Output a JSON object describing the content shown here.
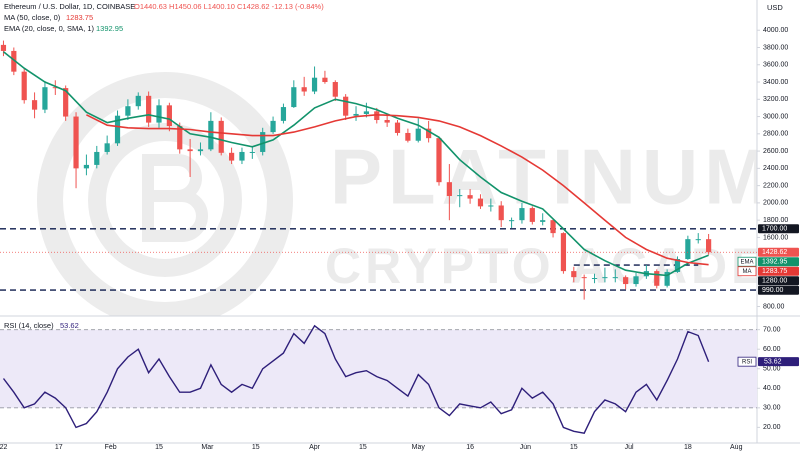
{
  "chart_data": {
    "type": "candlestick",
    "header": {
      "title": "Ethereum / U.S. Dollar, 1D, COINBASE",
      "ohlc": "O1440.63 H1450.06 L1400.10 C1428.62 -12.13 (-0.84%)",
      "ma_label": "MA (50, close, 0)",
      "ma_value": 1283.75,
      "ema_label": "EMA (20, close, 0, SMA, 1)",
      "ema_value": 1392.95
    },
    "axis_unit": "USD",
    "watermark": [
      "PLATINUM",
      "CRYPTO ACADEMY"
    ],
    "xlim": [
      -1,
      218
    ],
    "xticks": [
      {
        "value": 0,
        "label": "22"
      },
      {
        "value": 16,
        "label": "17"
      },
      {
        "value": 31,
        "label": "Feb"
      },
      {
        "value": 45,
        "label": "15"
      },
      {
        "value": 59,
        "label": "Mar"
      },
      {
        "value": 73,
        "label": "15"
      },
      {
        "value": 90,
        "label": "Apr"
      },
      {
        "value": 104,
        "label": "15"
      },
      {
        "value": 120,
        "label": "May"
      },
      {
        "value": 135,
        "label": "16"
      },
      {
        "value": 151,
        "label": "Jun"
      },
      {
        "value": 165,
        "label": "15"
      },
      {
        "value": 181,
        "label": "Jul"
      },
      {
        "value": 198,
        "label": "18"
      },
      {
        "value": 212,
        "label": "Aug"
      }
    ],
    "ylim": [
      690,
      4350
    ],
    "yticks": [
      {
        "value": 800,
        "label": "800.00"
      },
      {
        "value": 1600,
        "label": "1600.00"
      },
      {
        "value": 1800,
        "label": "1800.00"
      },
      {
        "value": 2000,
        "label": "2000.00"
      },
      {
        "value": 2200,
        "label": "2200.00"
      },
      {
        "value": 2400,
        "label": "2400.00"
      },
      {
        "value": 2600,
        "label": "2600.00"
      },
      {
        "value": 2800,
        "label": "2800.00"
      },
      {
        "value": 3000,
        "label": "3000.00"
      },
      {
        "value": 3200,
        "label": "3200.00"
      },
      {
        "value": 3400,
        "label": "3400.00"
      },
      {
        "value": 3600,
        "label": "3600.00"
      },
      {
        "value": 3800,
        "label": "3800.00"
      },
      {
        "value": 4000,
        "label": "4000.00"
      }
    ],
    "grid": false,
    "candles": {
      "up_color": "#26a69a",
      "down_color": "#ef5350",
      "x": [
        0,
        3,
        6,
        9,
        12,
        15,
        18,
        21,
        24,
        27,
        30,
        33,
        36,
        39,
        42,
        45,
        48,
        51,
        54,
        57,
        60,
        63,
        66,
        69,
        72,
        75,
        78,
        81,
        84,
        87,
        90,
        93,
        96,
        99,
        102,
        105,
        108,
        111,
        114,
        117,
        120,
        123,
        126,
        129,
        132,
        135,
        138,
        141,
        144,
        147,
        150,
        153,
        156,
        159,
        162,
        165,
        168,
        171,
        174,
        177,
        180,
        183,
        186,
        189,
        192,
        195,
        198,
        201,
        204
      ],
      "open": [
        3830,
        3760,
        3520,
        3190,
        3080,
        3340,
        3330,
        3000,
        2400,
        2440,
        2590,
        2690,
        3010,
        3120,
        3240,
        2930,
        3130,
        2890,
        2620,
        2600,
        2620,
        2950,
        2580,
        2490,
        2590,
        2590,
        2820,
        2950,
        3110,
        3340,
        3290,
        3450,
        3400,
        3230,
        3010,
        3030,
        3060,
        2960,
        2930,
        2810,
        2720,
        2860,
        2750,
        2240,
        2080,
        2090,
        2050,
        1960,
        1970,
        1800,
        1800,
        1940,
        1780,
        1800,
        1650,
        1210,
        1140,
        1130,
        1130,
        1140,
        1140,
        1060,
        1150,
        1210,
        1040,
        1200,
        1350,
        1580,
        1580
      ],
      "high": [
        3880,
        3800,
        3560,
        3280,
        3410,
        3420,
        3360,
        3050,
        2560,
        2660,
        2780,
        3070,
        3200,
        3280,
        3290,
        3200,
        3160,
        2930,
        2740,
        2700,
        3050,
        2990,
        2640,
        2640,
        2650,
        2870,
        3000,
        3150,
        3420,
        3460,
        3580,
        3530,
        3420,
        3260,
        3120,
        3160,
        3100,
        3020,
        2960,
        2860,
        2980,
        2950,
        2770,
        2450,
        2160,
        2160,
        2100,
        2050,
        2020,
        1830,
        2000,
        1960,
        1880,
        1820,
        1660,
        1260,
        1170,
        1180,
        1250,
        1230,
        1160,
        1190,
        1280,
        1230,
        1230,
        1380,
        1620,
        1650,
        1640
      ],
      "low": [
        3700,
        3480,
        3150,
        2980,
        3040,
        3250,
        2950,
        2170,
        2320,
        2400,
        2560,
        2660,
        2960,
        3080,
        2880,
        2870,
        2830,
        2570,
        2300,
        2550,
        2600,
        2550,
        2450,
        2450,
        2510,
        2550,
        2800,
        2920,
        3100,
        3240,
        3260,
        3380,
        3180,
        2960,
        2950,
        2990,
        2920,
        2880,
        2780,
        2700,
        2700,
        2700,
        2200,
        1800,
        1950,
        1990,
        1930,
        1900,
        1720,
        1710,
        1760,
        1750,
        1740,
        1600,
        1180,
        1080,
        880,
        1070,
        1080,
        1080,
        1000,
        1030,
        1120,
        1010,
        1020,
        1190,
        1340,
        1530,
        1400
      ],
      "close": [
        3760,
        3520,
        3190,
        3080,
        3340,
        3330,
        3000,
        2400,
        2440,
        2590,
        2690,
        3010,
        3120,
        3240,
        2930,
        3130,
        2890,
        2620,
        2600,
        2620,
        2950,
        2580,
        2490,
        2590,
        2590,
        2820,
        2950,
        3110,
        3340,
        3290,
        3450,
        3400,
        3230,
        3010,
        3030,
        3060,
        2960,
        2930,
        2810,
        2720,
        2860,
        2750,
        2240,
        2080,
        2090,
        2050,
        1960,
        1970,
        1800,
        1800,
        1940,
        1780,
        1800,
        1650,
        1210,
        1140,
        1130,
        1130,
        1140,
        1140,
        1060,
        1150,
        1210,
        1040,
        1200,
        1350,
        1580,
        1580,
        1429
      ]
    },
    "line_x": [
      0,
      6,
      12,
      18,
      24,
      30,
      36,
      42,
      48,
      54,
      60,
      66,
      72,
      78,
      84,
      90,
      96,
      102,
      108,
      114,
      120,
      126,
      132,
      138,
      144,
      150,
      156,
      162,
      168,
      174,
      180,
      186,
      192,
      198,
      204
    ],
    "series": [
      {
        "name": "EMA",
        "color": "#12936b",
        "values": [
          3750,
          3560,
          3400,
          3300,
          3050,
          2930,
          2980,
          3020,
          2970,
          2800,
          2760,
          2700,
          2650,
          2730,
          2900,
          3100,
          3200,
          3150,
          3080,
          2980,
          2900,
          2760,
          2500,
          2300,
          2120,
          2020,
          1930,
          1700,
          1460,
          1330,
          1220,
          1180,
          1160,
          1300,
          1392.95
        ]
      },
      {
        "name": "MA",
        "color": "#e53935",
        "values": [
          null,
          null,
          null,
          null,
          3020,
          2900,
          2870,
          2860,
          2860,
          2850,
          2820,
          2800,
          2780,
          2780,
          2820,
          2880,
          2950,
          3000,
          3020,
          3010,
          2990,
          2950,
          2880,
          2780,
          2660,
          2530,
          2380,
          2200,
          2000,
          1800,
          1600,
          1460,
          1360,
          1310,
          1283.75
        ]
      }
    ],
    "levels": [
      1700,
      990
    ],
    "range_level": {
      "value": 1280,
      "x": [
        165,
        201
      ]
    },
    "price_tags": [
      {
        "value": 1700,
        "label": "1700.00",
        "color": "#131722"
      },
      {
        "value": 1428.62,
        "label": "1428.62",
        "color": "#ef5350",
        "price_line": true
      },
      {
        "name": "EMA",
        "value": 1392.95,
        "label": "1392.95",
        "color": "#12936b"
      },
      {
        "name": "MA",
        "value": 1283.75,
        "label": "1283.75",
        "color": "#e53935"
      },
      {
        "value": 1280,
        "label": "1280.00",
        "color": "#131722"
      },
      {
        "value": 990,
        "label": "990.00",
        "color": "#131722"
      }
    ],
    "rsi": {
      "label": "RSI (14, close)",
      "last": 53.62,
      "color": "#2e1f7a",
      "ylim": [
        12,
        77
      ],
      "yticks": [
        {
          "value": 20,
          "label": "20.00"
        },
        {
          "value": 30,
          "label": "30.00"
        },
        {
          "value": 40,
          "label": "40.00"
        },
        {
          "value": 50,
          "label": "50.00"
        },
        {
          "value": 60,
          "label": "60.00"
        },
        {
          "value": 70,
          "label": "70.00"
        }
      ],
      "bands": [
        70,
        30
      ],
      "values": [
        45,
        38,
        30,
        32,
        38,
        35,
        30,
        20,
        22,
        28,
        38,
        50,
        56,
        60,
        48,
        55,
        46,
        38,
        38,
        40,
        52,
        42,
        38,
        42,
        40,
        50,
        54,
        58,
        68,
        63,
        72,
        68,
        55,
        46,
        48,
        49,
        46,
        44,
        40,
        36,
        47,
        42,
        30,
        26,
        32,
        31,
        30,
        33,
        27,
        29,
        40,
        35,
        38,
        32,
        20,
        18,
        17,
        28,
        34,
        32,
        28,
        38,
        42,
        34,
        44,
        55,
        69,
        67,
        53.62
      ],
      "tag": {
        "name": "RSI",
        "value": 53.62,
        "label": "53.62"
      }
    }
  }
}
